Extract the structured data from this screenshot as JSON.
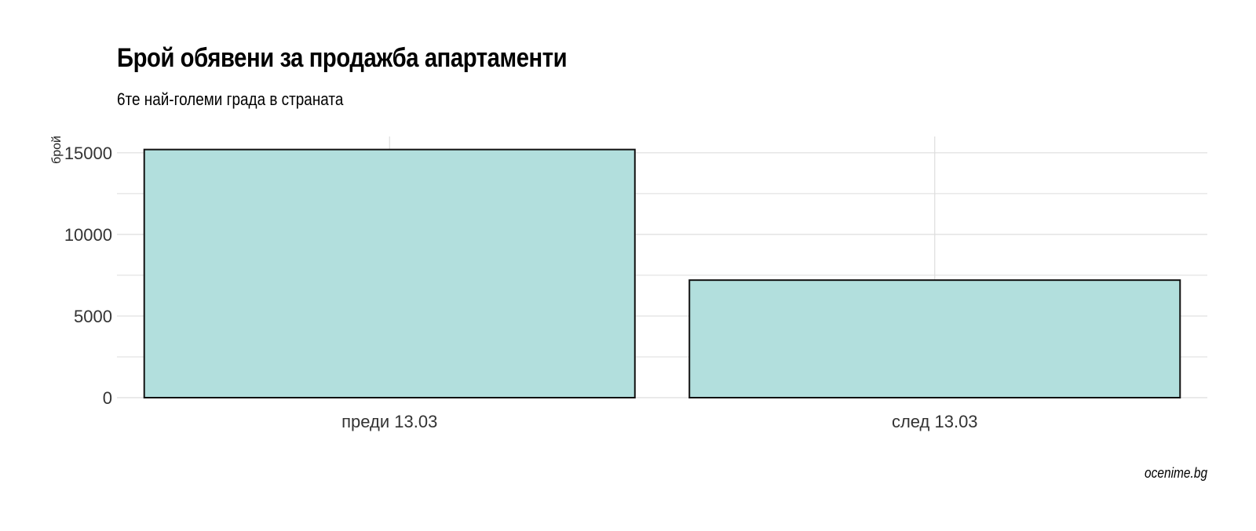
{
  "chart_data": {
    "type": "bar",
    "title": "Брой обявени за продажба апартаменти",
    "subtitle": "6те най-големи града в страната",
    "ylabel": "брой",
    "xlabel": "",
    "categories": [
      "преди 13.03",
      "след 13.03"
    ],
    "values": [
      15200,
      7200
    ],
    "ylim": [
      0,
      16000
    ],
    "yticks": [
      0,
      5000,
      10000,
      15000
    ],
    "ytick_labels": [
      "0",
      "5000",
      "10000",
      "15000"
    ],
    "grid": true,
    "legend": "none",
    "caption": "ocenime.bg",
    "colors": {
      "bar_fill": "#b2dfdd",
      "bar_stroke": "#111111",
      "grid": "#dddddd"
    }
  }
}
